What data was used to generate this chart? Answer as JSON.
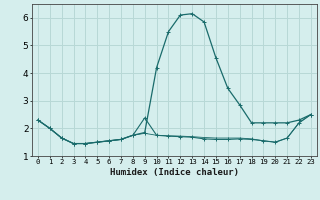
{
  "xlabel": "Humidex (Indice chaleur)",
  "background_color": "#d5eeed",
  "grid_color": "#b8d8d6",
  "line_color": "#1a6b6b",
  "xlim": [
    -0.5,
    23.5
  ],
  "ylim": [
    1.0,
    6.5
  ],
  "yticks": [
    1,
    2,
    3,
    4,
    5,
    6
  ],
  "xtick_labels": [
    "0",
    "1",
    "2",
    "3",
    "4",
    "5",
    "6",
    "7",
    "8",
    "9",
    "10",
    "11",
    "12",
    "13",
    "14",
    "15",
    "16",
    "17",
    "18",
    "19",
    "20",
    "21",
    "22",
    "23"
  ],
  "series1_x": [
    0,
    1,
    2,
    3,
    4,
    5,
    6,
    7,
    8,
    9,
    10,
    11,
    12,
    13,
    14,
    15,
    16,
    17,
    18,
    19,
    20,
    21,
    22,
    23
  ],
  "series1_y": [
    2.3,
    2.0,
    1.65,
    1.45,
    1.45,
    1.5,
    1.55,
    1.6,
    1.75,
    1.85,
    4.2,
    5.5,
    6.1,
    6.15,
    5.85,
    4.55,
    3.45,
    2.85,
    2.2,
    2.2,
    2.2,
    2.2,
    2.3,
    2.5
  ],
  "series2_x": [
    0,
    1,
    2,
    3,
    4,
    5,
    6,
    7,
    8,
    9,
    10,
    11,
    12,
    13,
    14,
    15,
    16,
    17,
    18,
    19,
    20,
    21,
    22,
    23
  ],
  "series2_y": [
    2.3,
    2.0,
    1.65,
    1.45,
    1.45,
    1.5,
    1.55,
    1.6,
    1.75,
    2.38,
    1.75,
    1.72,
    1.7,
    1.68,
    1.62,
    1.6,
    1.6,
    1.62,
    1.6,
    1.55,
    1.5,
    1.65,
    2.2,
    2.5
  ],
  "series3_x": [
    0,
    1,
    2,
    3,
    4,
    5,
    6,
    7,
    8,
    9,
    10,
    11,
    12,
    13,
    14,
    15,
    16,
    17,
    18,
    19,
    20,
    21,
    22,
    23
  ],
  "series3_y": [
    2.3,
    2.0,
    1.65,
    1.45,
    1.45,
    1.5,
    1.55,
    1.6,
    1.75,
    1.82,
    1.75,
    1.73,
    1.72,
    1.7,
    1.67,
    1.65,
    1.65,
    1.65,
    1.62,
    1.55,
    1.5,
    1.65,
    2.2,
    2.5
  ]
}
